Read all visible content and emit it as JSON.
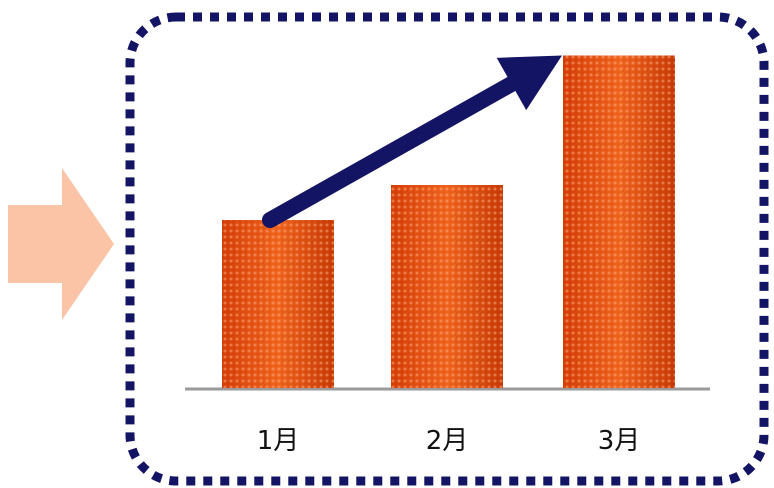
{
  "colors": {
    "frame": "#141464",
    "arrow": "#141464",
    "side_arrow": "#fcc4a6",
    "bar_base": "#ee4a10",
    "bar_light": "#f8a070",
    "baseline": "#9a9a9a"
  },
  "chart_data": {
    "type": "bar",
    "categories": [
      "1月",
      "2月",
      "3月"
    ],
    "values": [
      48,
      58,
      95
    ],
    "title": "",
    "xlabel": "",
    "ylabel": "",
    "ylim": [
      0,
      100
    ],
    "grid": false,
    "legend": "none",
    "trend_arrow": true
  }
}
